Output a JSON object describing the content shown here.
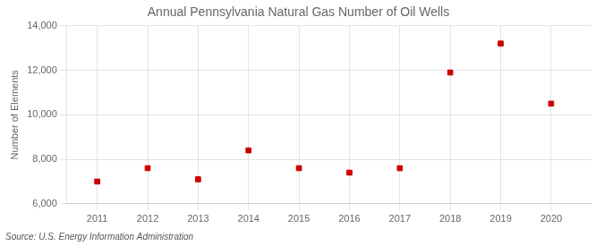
{
  "chart_data": {
    "type": "scatter",
    "title": "Annual Pennsylvania Natural Gas Number of Oil Wells",
    "ylabel": "Number of Elements",
    "source": "Source: U.S. Energy Information Administration",
    "x": [
      2011,
      2012,
      2013,
      2014,
      2015,
      2016,
      2017,
      2018,
      2019,
      2020
    ],
    "values": [
      7000,
      7600,
      7100,
      8400,
      7600,
      7400,
      7600,
      11900,
      13200,
      10500
    ],
    "color": "#cc0000",
    "marker": "square",
    "xlim": [
      2010.4,
      2020.8
    ],
    "xticks": [
      2011,
      2012,
      2013,
      2014,
      2015,
      2016,
      2017,
      2018,
      2019,
      2020
    ],
    "ylim": [
      6000,
      14000
    ],
    "yticks": [
      {
        "value": 6000,
        "label": "6,000"
      },
      {
        "value": 8000,
        "label": "8,000"
      },
      {
        "value": 10000,
        "label": "10,000"
      },
      {
        "value": 12000,
        "label": "12,000"
      },
      {
        "value": 14000,
        "label": "14,000"
      }
    ],
    "grid": true
  }
}
